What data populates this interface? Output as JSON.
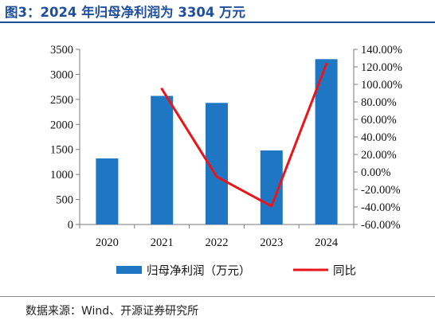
{
  "figure": {
    "title": "图3：2024 年归母净利润为 3304 万元",
    "source": "数据来源：Wind、开源证券研究所"
  },
  "colors": {
    "bar": "#1f77c4",
    "line": "#e8161a",
    "title": "#1f4e9c"
  },
  "chart_data": {
    "type": "bar",
    "categories": [
      "2020",
      "2021",
      "2022",
      "2023",
      "2024"
    ],
    "series": [
      {
        "name": "归母净利润（万元）",
        "type": "bar",
        "axis": "left",
        "values": [
          1320,
          2570,
          2430,
          1480,
          3304
        ]
      },
      {
        "name": "同比",
        "type": "line",
        "axis": "right",
        "unit": "%",
        "values": [
          null,
          94.7,
          -5.4,
          -39.1,
          123.2
        ]
      }
    ],
    "y_left": {
      "min": 0,
      "max": 3500,
      "step": 500,
      "ticks": [
        "0",
        "500",
        "1000",
        "1500",
        "2000",
        "2500",
        "3000",
        "3500"
      ]
    },
    "y_right": {
      "min": -60,
      "max": 140,
      "step": 20,
      "ticks": [
        "-60.00%",
        "-40.00%",
        "-20.00%",
        "0.00%",
        "20.00%",
        "40.00%",
        "60.00%",
        "80.00%",
        "100.00%",
        "120.00%",
        "140.00%"
      ]
    },
    "legend_position": "bottom",
    "grid": false
  }
}
